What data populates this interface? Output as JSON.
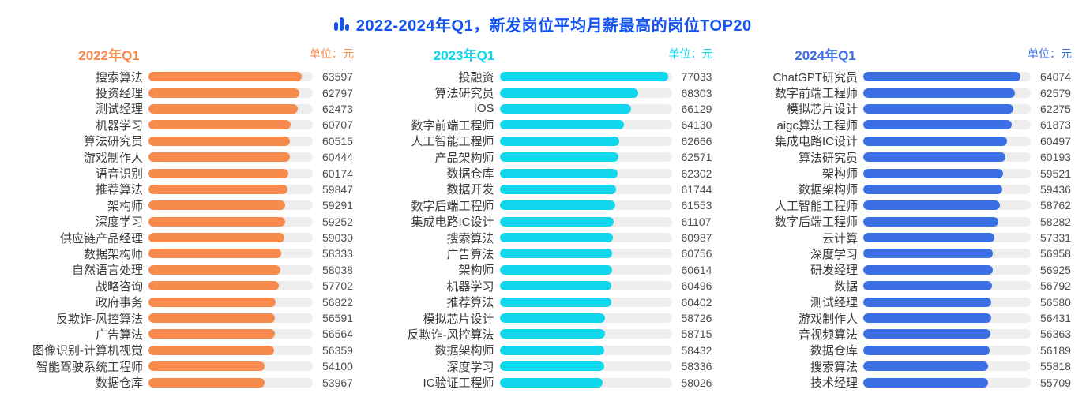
{
  "title": {
    "text": "2022-2024年Q1，新发岗位平均月薪最高的岗位TOP20",
    "color": "#1453F0",
    "icon": "bar-chart-icon"
  },
  "chart_data": [
    {
      "type": "bar",
      "orientation": "horizontal",
      "title": "2022年Q1",
      "unit_label": "单位：元",
      "bar_color": "#F78B4D",
      "track_color": "#EEEEEE",
      "value_axis": "hidden",
      "categories": [
        "搜索算法",
        "投资经理",
        "测试经理",
        "机器学习",
        "算法研究员",
        "游戏制作人",
        "语音识别",
        "推荐算法",
        "架构师",
        "深度学习",
        "供应链产品经理",
        "数据架构师",
        "自然语言处理",
        "战略咨询",
        "政府事务",
        "反欺诈-风控算法",
        "广告算法",
        "图像识别-计算机视觉",
        "智能驾驶系统工程师",
        "数据仓库"
      ],
      "values": [
        63597,
        62797,
        62473,
        60707,
        60515,
        60444,
        60174,
        59847,
        59291,
        59252,
        59030,
        58333,
        58038,
        57702,
        56822,
        56591,
        56564,
        56359,
        54100,
        53967
      ]
    },
    {
      "type": "bar",
      "orientation": "horizontal",
      "title": "2023年Q1",
      "unit_label": "单位：元",
      "bar_color": "#12D6EC",
      "track_color": "#EEEEEE",
      "value_axis": "hidden",
      "categories": [
        "投融资",
        "算法研究员",
        "IOS",
        "数字前端工程师",
        "人工智能工程师",
        "产品架构师",
        "数据仓库",
        "数据开发",
        "数字后端工程师",
        "集成电路IC设计",
        "搜索算法",
        "广告算法",
        "架构师",
        "机器学习",
        "推荐算法",
        "模拟芯片设计",
        "反欺诈-风控算法",
        "数据架构师",
        "深度学习",
        "IC验证工程师"
      ],
      "values": [
        77033,
        68303,
        66129,
        64130,
        62666,
        62571,
        62302,
        61744,
        61553,
        61107,
        60987,
        60756,
        60614,
        60496,
        60402,
        58726,
        58715,
        58432,
        58336,
        58026
      ]
    },
    {
      "type": "bar",
      "orientation": "horizontal",
      "title": "2024年Q1",
      "unit_label": "单位：元",
      "bar_color": "#3D6FE4",
      "track_color": "#EEEEEE",
      "value_axis": "hidden",
      "categories": [
        "ChatGPT研究员",
        "数字前端工程师",
        "模拟芯片设计",
        "aigc算法工程师",
        "集成电路IC设计",
        "算法研究员",
        "架构师",
        "数据架构师",
        "人工智能工程师",
        "数字后端工程师",
        "云计算",
        "深度学习",
        "研发经理",
        "数据",
        "测试经理",
        "游戏制作人",
        "音视频算法",
        "数据仓库",
        "搜索算法",
        "技术经理"
      ],
      "values": [
        64074,
        62579,
        62275,
        61873,
        60497,
        60193,
        59521,
        59436,
        58762,
        58282,
        57331,
        56958,
        56925,
        56792,
        56580,
        56431,
        56363,
        56189,
        55818,
        55709
      ]
    }
  ]
}
